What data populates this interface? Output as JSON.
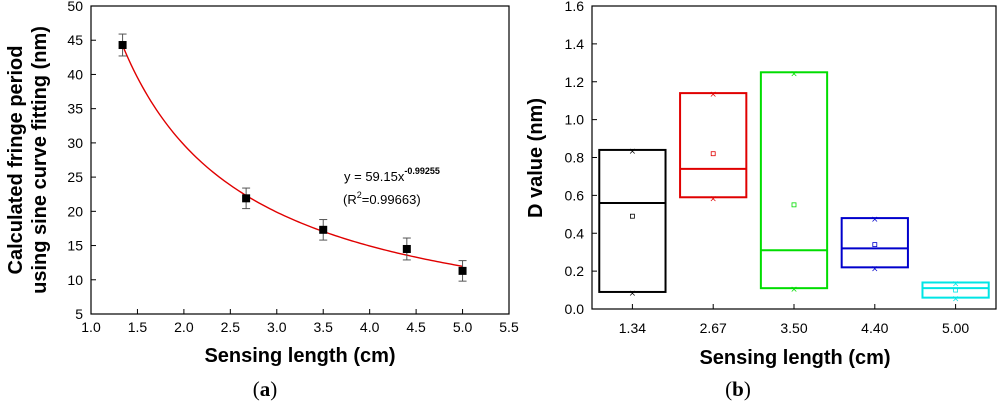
{
  "panel_a": {
    "label_open": "(",
    "label_letter": "a",
    "label_close": ")",
    "equation_prefix": "y = 59.15x",
    "equation_exponent": "-0.99255",
    "r2_open": "(R",
    "r2_sup": "2",
    "r2_rest": "=0.99663)"
  },
  "panel_b": {
    "label_open": "(",
    "label_letter": "b",
    "label_close": ")"
  },
  "chart_data": [
    {
      "type": "scatter",
      "xlabel": "Sensing length (cm)",
      "ylabel_lines": [
        "Calculated fringe period",
        "using sine curve fitting (nm)"
      ],
      "xlim": [
        1.0,
        5.5
      ],
      "ylim": [
        5,
        50
      ],
      "xticks": [
        1.0,
        1.5,
        2.0,
        2.5,
        3.0,
        3.5,
        4.0,
        4.5,
        5.0,
        5.5
      ],
      "xtick_labels": [
        "1.0",
        "1.5",
        "2.0",
        "2.5",
        "3.0",
        "3.5",
        "4.0",
        "4.5",
        "5.0",
        "5.5"
      ],
      "yticks": [
        5,
        10,
        15,
        20,
        25,
        30,
        35,
        40,
        45,
        50
      ],
      "ytick_labels": [
        "5",
        "10",
        "15",
        "20",
        "25",
        "30",
        "35",
        "40",
        "45",
        "50"
      ],
      "points": [
        {
          "x": 1.34,
          "y": 44.3,
          "err": 1.6
        },
        {
          "x": 2.67,
          "y": 21.9,
          "err": 1.5
        },
        {
          "x": 3.5,
          "y": 17.3,
          "err": 1.5
        },
        {
          "x": 4.4,
          "y": 14.5,
          "err": 1.6
        },
        {
          "x": 5.0,
          "y": 11.3,
          "err": 1.5
        }
      ],
      "fit": {
        "a": 59.15,
        "b": -0.99255,
        "r2": 0.99663,
        "x_range": [
          1.34,
          5.0
        ],
        "color": "#e00000"
      },
      "marker_color": "#000000"
    },
    {
      "type": "box",
      "xlabel": "Sensing length (cm)",
      "ylabel": "D value (nm)",
      "ylim": [
        0.0,
        1.6
      ],
      "yticks": [
        0.0,
        0.2,
        0.4,
        0.6,
        0.8,
        1.0,
        1.2,
        1.4,
        1.6
      ],
      "ytick_labels": [
        "0.0",
        "0.2",
        "0.4",
        "0.6",
        "0.8",
        "1.0",
        "1.2",
        "1.4",
        "1.6"
      ],
      "categories": [
        "1.34",
        "2.67",
        "3.50",
        "4.40",
        "5.00"
      ],
      "boxes": [
        {
          "q1": 0.09,
          "median": 0.56,
          "q3": 0.84,
          "mean": 0.49,
          "color": "#000000"
        },
        {
          "q1": 0.59,
          "median": 0.74,
          "q3": 1.14,
          "mean": 0.82,
          "color": "#e00000"
        },
        {
          "q1": 0.11,
          "median": 0.31,
          "q3": 1.25,
          "mean": 0.55,
          "color": "#00dd00"
        },
        {
          "q1": 0.22,
          "median": 0.32,
          "q3": 0.48,
          "mean": 0.34,
          "color": "#0000cc"
        },
        {
          "q1": 0.06,
          "median": 0.11,
          "q3": 0.14,
          "mean": 0.1,
          "color": "#00e5e5"
        }
      ]
    }
  ]
}
